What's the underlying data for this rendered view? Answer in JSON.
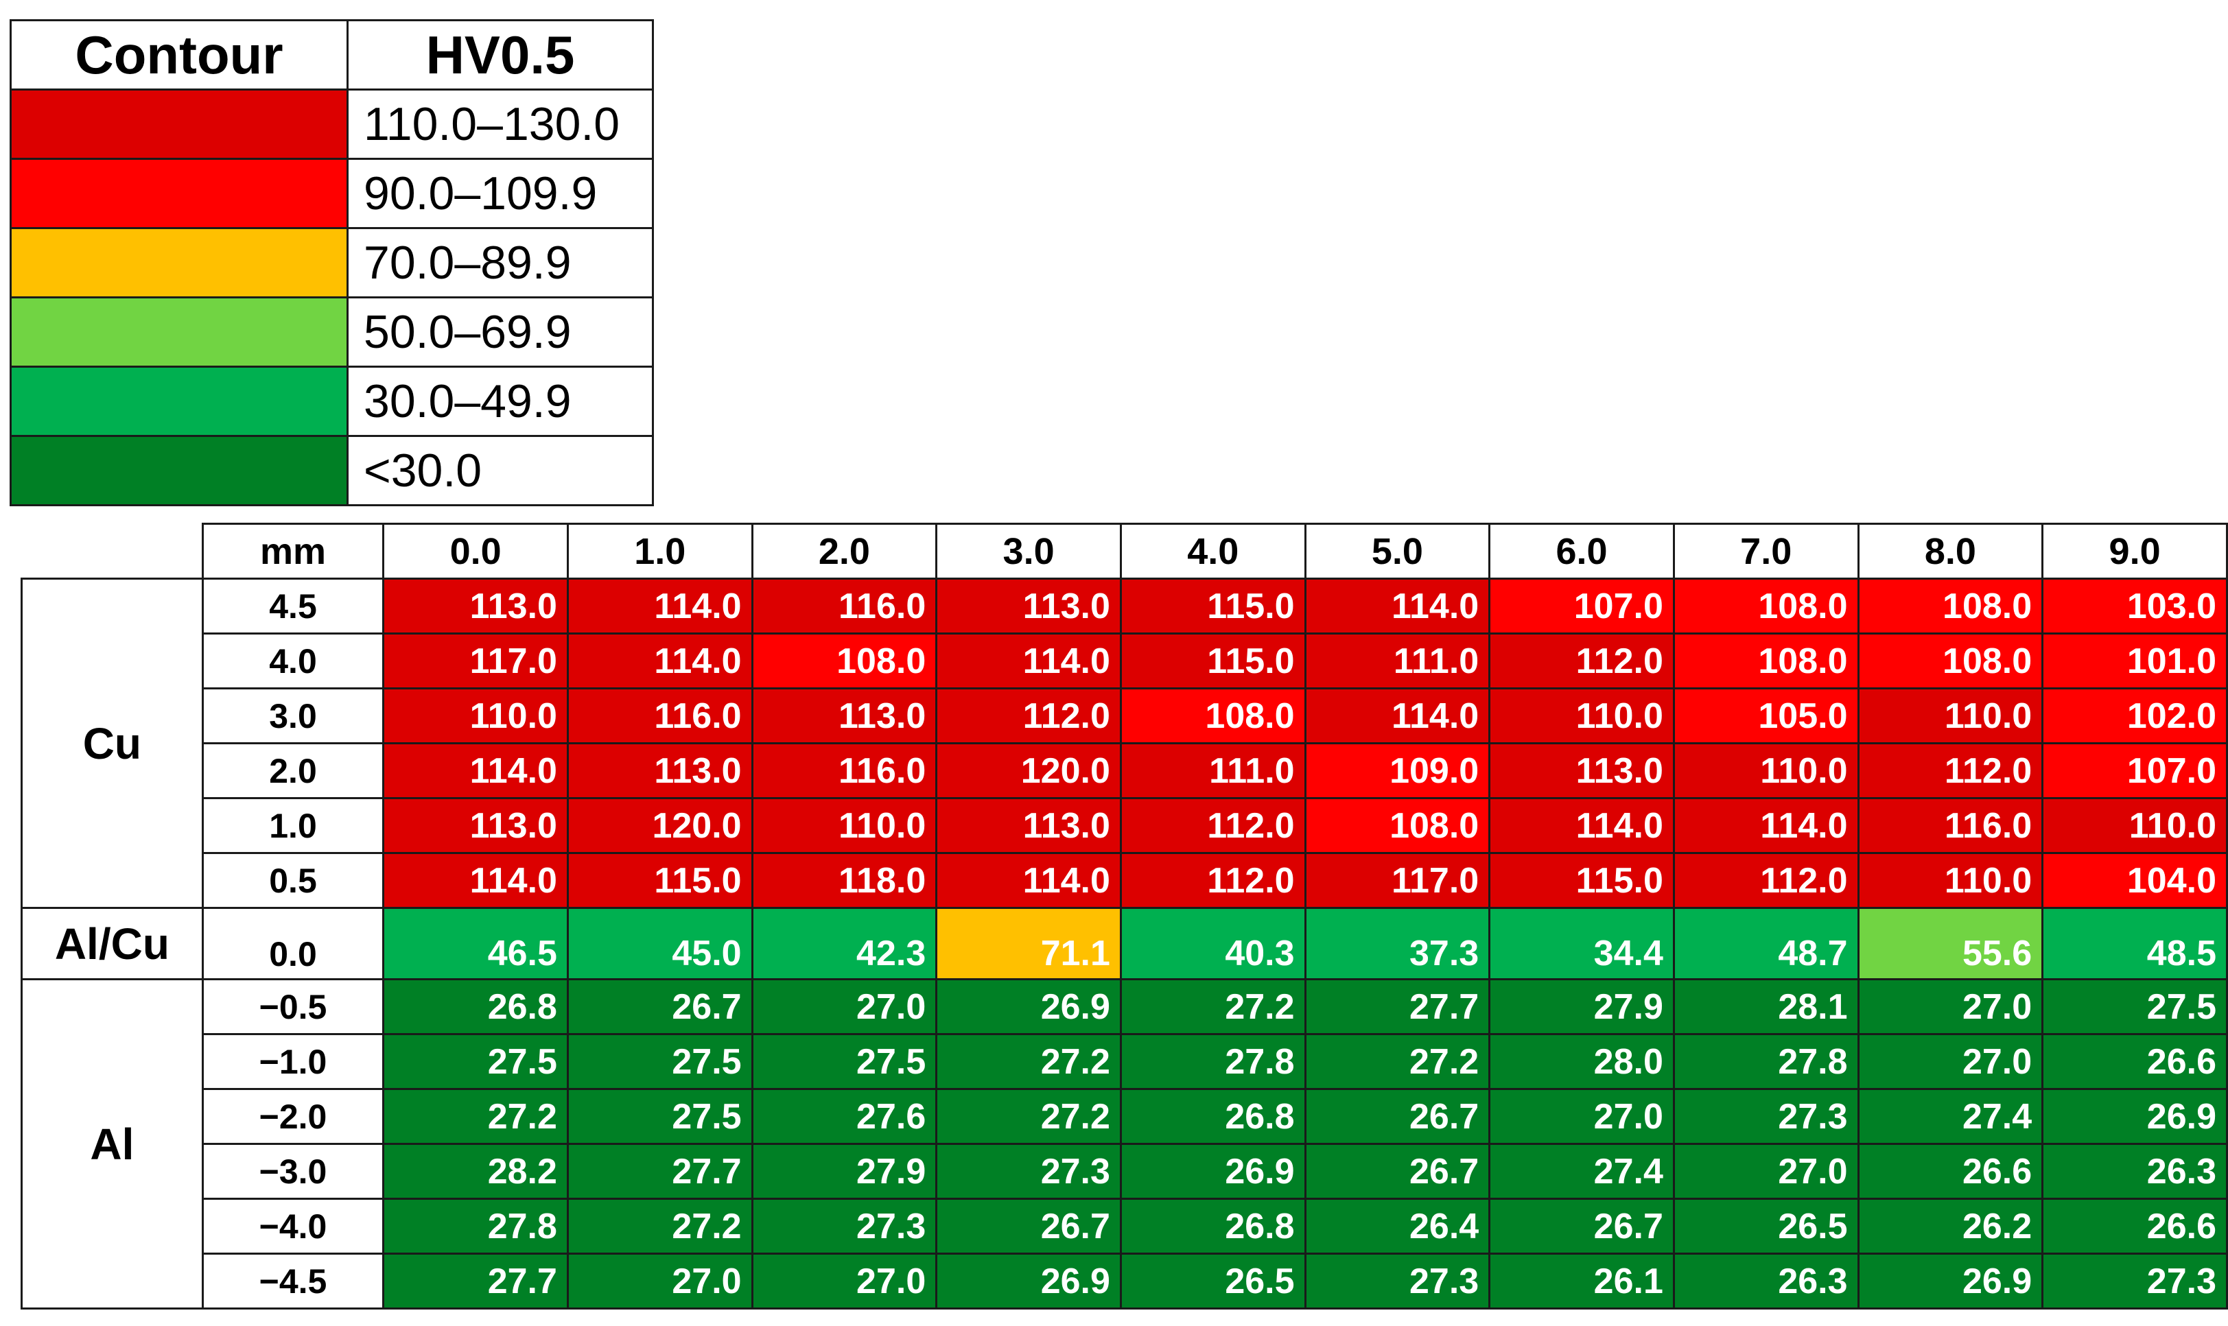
{
  "legend": {
    "header_left": "Contour",
    "header_right": "HV0.5",
    "bins": [
      {
        "label": "110.0–130.0",
        "color": "#dc0000"
      },
      {
        "label": "90.0–109.9",
        "color": "#ff0000"
      },
      {
        "label": "70.0–89.9",
        "color": "#ffc000"
      },
      {
        "label": "50.0–69.9",
        "color": "#71d443"
      },
      {
        "label": "30.0–49.9",
        "color": "#00b050"
      },
      {
        "label": "<30.0",
        "color": "#008025"
      }
    ]
  },
  "chart_data": {
    "type": "heatmap",
    "corner_label": "mm",
    "x": [
      "0.0",
      "1.0",
      "2.0",
      "3.0",
      "4.0",
      "5.0",
      "6.0",
      "7.0",
      "8.0",
      "9.0"
    ],
    "groups": [
      {
        "label": "Cu",
        "rows": [
          "4.5",
          "4.0",
          "3.0",
          "2.0",
          "1.0",
          "0.5"
        ]
      },
      {
        "label": "Al/Cu",
        "rows": [
          "0.0"
        ]
      },
      {
        "label": "Al",
        "rows": [
          "−0.5",
          "−1.0",
          "−2.0",
          "−3.0",
          "−4.0",
          "−4.5"
        ]
      }
    ],
    "values": [
      [
        "113.0",
        "114.0",
        "116.0",
        "113.0",
        "115.0",
        "114.0",
        "107.0",
        "108.0",
        "108.0",
        "103.0"
      ],
      [
        "117.0",
        "114.0",
        "108.0",
        "114.0",
        "115.0",
        "111.0",
        "112.0",
        "108.0",
        "108.0",
        "101.0"
      ],
      [
        "110.0",
        "116.0",
        "113.0",
        "112.0",
        "108.0",
        "114.0",
        "110.0",
        "105.0",
        "110.0",
        "102.0"
      ],
      [
        "114.0",
        "113.0",
        "116.0",
        "120.0",
        "111.0",
        "109.0",
        "113.0",
        "110.0",
        "112.0",
        "107.0"
      ],
      [
        "113.0",
        "120.0",
        "110.0",
        "113.0",
        "112.0",
        "108.0",
        "114.0",
        "114.0",
        "116.0",
        "110.0"
      ],
      [
        "114.0",
        "115.0",
        "118.0",
        "114.0",
        "112.0",
        "117.0",
        "115.0",
        "112.0",
        "110.0",
        "104.0"
      ],
      [
        "46.5",
        "45.0",
        "42.3",
        "71.1",
        "40.3",
        "37.3",
        "34.4",
        "48.7",
        "55.6",
        "48.5"
      ],
      [
        "26.8",
        "26.7",
        "27.0",
        "26.9",
        "27.2",
        "27.7",
        "27.9",
        "28.1",
        "27.0",
        "27.5"
      ],
      [
        "27.5",
        "27.5",
        "27.5",
        "27.2",
        "27.8",
        "27.2",
        "28.0",
        "27.8",
        "27.0",
        "26.6"
      ],
      [
        "27.2",
        "27.5",
        "27.6",
        "27.2",
        "26.8",
        "26.7",
        "27.0",
        "27.3",
        "27.4",
        "26.9"
      ],
      [
        "28.2",
        "27.7",
        "27.9",
        "27.3",
        "26.9",
        "26.7",
        "27.4",
        "27.0",
        "26.6",
        "26.3"
      ],
      [
        "27.8",
        "27.2",
        "27.3",
        "26.7",
        "26.8",
        "26.4",
        "26.7",
        "26.5",
        "26.2",
        "26.6"
      ],
      [
        "27.7",
        "27.0",
        "27.0",
        "26.9",
        "26.5",
        "27.3",
        "26.1",
        "26.3",
        "26.9",
        "27.3"
      ]
    ]
  }
}
